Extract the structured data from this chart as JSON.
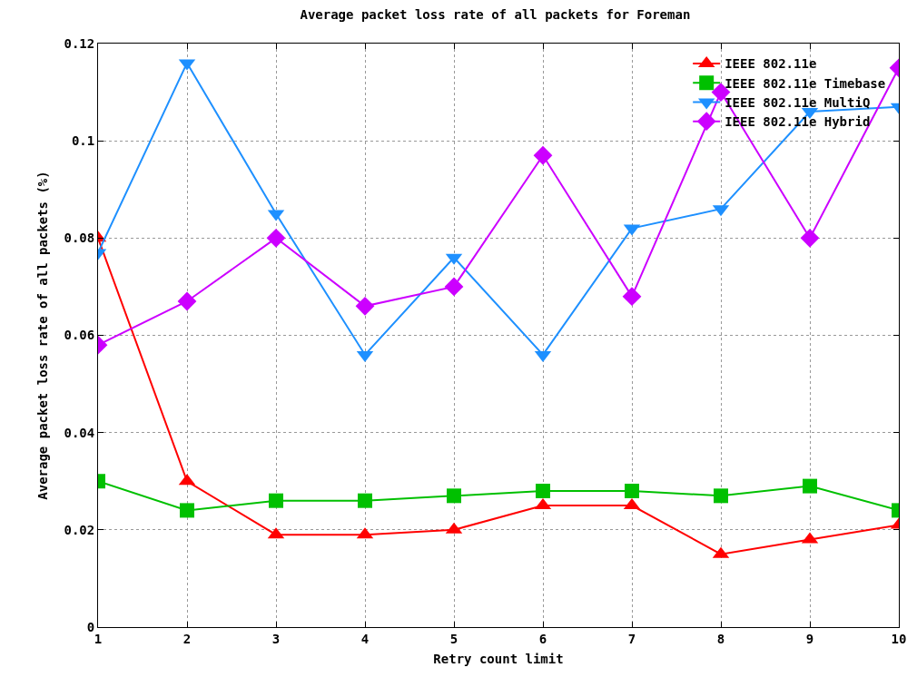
{
  "chart_data": {
    "type": "line",
    "title": "Average packet loss rate of all packets for Foreman",
    "xlabel": "Retry count limit",
    "ylabel": "Average packet loss rate of all packets (%)",
    "x": [
      1,
      2,
      3,
      4,
      5,
      6,
      7,
      8,
      9,
      10
    ],
    "series": [
      {
        "name": "IEEE 802.11e",
        "color": "#ff0000",
        "marker": "triangle-up",
        "values": [
          0.08,
          0.03,
          0.019,
          0.019,
          0.02,
          0.025,
          0.025,
          0.015,
          0.018,
          0.021
        ]
      },
      {
        "name": "IEEE 802.11e Timebase",
        "color": "#00c000",
        "marker": "square",
        "values": [
          0.03,
          0.024,
          0.026,
          0.026,
          0.027,
          0.028,
          0.028,
          0.027,
          0.029,
          0.024
        ]
      },
      {
        "name": "IEEE 802.11e MultiQ",
        "color": "#1e90ff",
        "marker": "triangle-down",
        "values": [
          0.077,
          0.116,
          0.085,
          0.056,
          0.076,
          0.056,
          0.082,
          0.086,
          0.106,
          0.107
        ]
      },
      {
        "name": "IEEE 802.11e Hybrid",
        "color": "#cc00ff",
        "marker": "diamond",
        "values": [
          0.058,
          0.067,
          0.08,
          0.066,
          0.07,
          0.097,
          0.068,
          0.11,
          0.08,
          0.115
        ]
      }
    ],
    "xlim": [
      1,
      10
    ],
    "xticks": [
      1,
      2,
      3,
      4,
      5,
      6,
      7,
      8,
      9,
      10
    ],
    "ylim": [
      0,
      0.12
    ],
    "yticks": [
      0,
      0.02,
      0.04,
      0.06,
      0.08,
      0.1,
      0.12
    ],
    "grid": true,
    "legend": "top right",
    "line_style": "solid"
  }
}
